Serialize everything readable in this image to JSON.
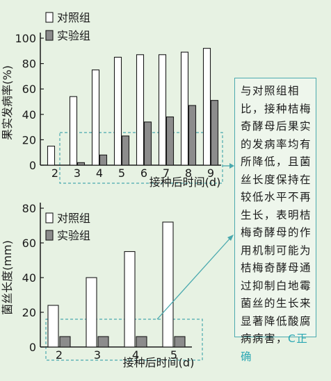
{
  "chart_data": [
    {
      "type": "bar",
      "ylabel": "果实发病率(%)",
      "xlabel": "接种后时间(d)",
      "categories": [
        "2",
        "3",
        "4",
        "5",
        "6",
        "7",
        "8",
        "9"
      ],
      "ylim": [
        0,
        100
      ],
      "yticks": [
        0,
        20,
        40,
        60,
        80,
        100
      ],
      "series": [
        {
          "name": "对照组",
          "values": [
            15,
            54,
            75,
            85,
            87,
            87,
            89,
            92
          ],
          "color": "#ffffff"
        },
        {
          "name": "实验组",
          "values": [
            0,
            2,
            8,
            23,
            34,
            38,
            47,
            51
          ],
          "color": "#8c8c8c"
        }
      ],
      "legend": "top-left"
    },
    {
      "type": "bar",
      "ylabel": "菌丝长度(mm)",
      "xlabel": "接种后时间(d)",
      "categories": [
        "2",
        "3",
        "4",
        "5"
      ],
      "ylim": [
        0,
        80
      ],
      "yticks": [
        0,
        20,
        40,
        60,
        80
      ],
      "series": [
        {
          "name": "对照组",
          "values": [
            24,
            40,
            55,
            72
          ],
          "color": "#ffffff"
        },
        {
          "name": "实验组",
          "values": [
            6,
            6,
            6,
            6
          ],
          "color": "#8c8c8c"
        }
      ],
      "legend": "top-left"
    }
  ],
  "annotation": {
    "text": "与对照组相比，接种桔梅奇酵母后果实的发病率均有所降低，且菌丝长度保持在较低水平不再生长，表明桔梅奇酵母的作用机制可能为桔梅奇酵母通过抑制白地霉菌丝的生长来显著降低酸腐病病害，",
    "tail": "C正确"
  },
  "colors": {
    "background": "#e7f2e3",
    "accent": "#4aa9ae",
    "bar_dark": "#8c8c8c",
    "bar_light": "#ffffff"
  }
}
